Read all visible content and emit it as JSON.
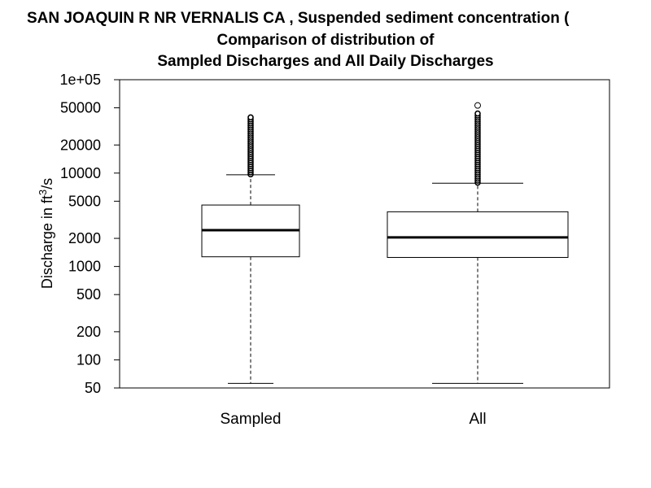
{
  "chart_data": {
    "type": "boxplot",
    "title_lines": [
      "SAN JOAQUIN R NR VERNALIS CA , Suspended sediment concentration (",
      "Comparison of distribution of",
      "Sampled Discharges and All Daily Discharges"
    ],
    "ylabel_prefix": "Discharge in ft",
    "ylabel_sup": "3",
    "ylabel_suffix": "/s",
    "y_scale": "log",
    "ylim": [
      50,
      100000
    ],
    "y_ticks": [
      {
        "value": 50,
        "label": "50"
      },
      {
        "value": 100,
        "label": "100"
      },
      {
        "value": 200,
        "label": "200"
      },
      {
        "value": 500,
        "label": "500"
      },
      {
        "value": 1000,
        "label": "1000"
      },
      {
        "value": 2000,
        "label": "2000"
      },
      {
        "value": 5000,
        "label": "5000"
      },
      {
        "value": 10000,
        "label": "10000"
      },
      {
        "value": 20000,
        "label": "20000"
      },
      {
        "value": 50000,
        "label": "50000"
      },
      {
        "value": 100000,
        "label": "1e+05"
      }
    ],
    "categories": [
      "Sampled",
      "All"
    ],
    "boxes": [
      {
        "name": "Sampled",
        "whisker_low": 56,
        "q1": 1270,
        "median": 2450,
        "q3": 4550,
        "whisker_high": 9600,
        "outlier_min": 9700,
        "outlier_max": 40000,
        "outliers_extra": []
      },
      {
        "name": "All",
        "whisker_low": 56,
        "q1": 1250,
        "median": 2050,
        "q3": 3850,
        "whisker_high": 7800,
        "outlier_min": 7900,
        "outlier_max": 45000,
        "outliers_extra": [
          53000
        ]
      }
    ],
    "grid": false
  }
}
